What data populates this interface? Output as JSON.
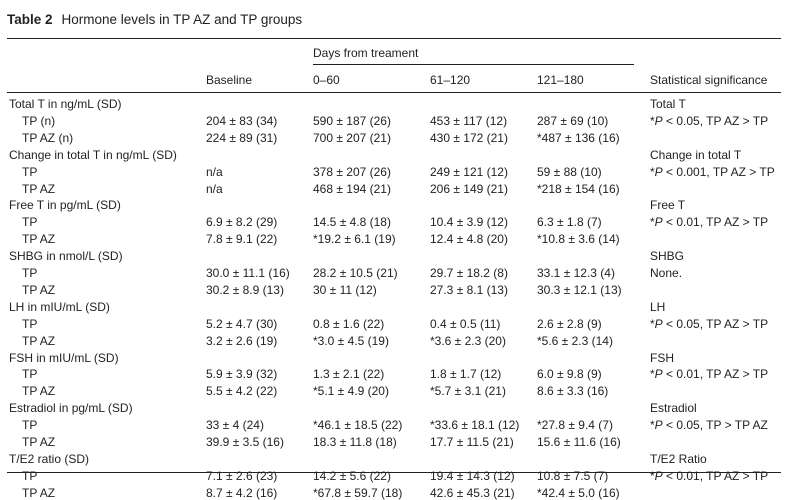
{
  "table": {
    "label": "Table 2",
    "title": "Hormone levels in TP AZ and TP groups",
    "span_header": "Days from treament",
    "col_headers": [
      "Baseline",
      "0–60",
      "61–120",
      "121–180",
      "Statistical significance"
    ],
    "sections": [
      {
        "heading": "Total T in ng/mL (SD)",
        "sig_title": "Total T",
        "sig_p": "P",
        "sig_prefix": "*",
        "sig_text": " < 0.05, TP AZ > TP",
        "rows": [
          {
            "label": "TP (n)",
            "values": [
              "204 ± 83 (34)",
              "590 ± 187 (26)",
              "453 ± 117 (12)",
              "287 ± 69 (10)"
            ]
          },
          {
            "label": "TP AZ (n)",
            "values": [
              "224 ± 89 (31)",
              "700 ± 207 (21)",
              "430 ± 172 (21)",
              "*487 ± 136 (16)"
            ]
          }
        ]
      },
      {
        "heading": "Change in total T in ng/mL (SD)",
        "sig_title": "Change in total T",
        "sig_p": "P",
        "sig_prefix": "*",
        "sig_text": " < 0.001, TP AZ > TP",
        "rows": [
          {
            "label": "TP",
            "values": [
              "n/a",
              "378 ± 207 (26)",
              "249 ± 121 (12)",
              "59 ± 88 (10)"
            ]
          },
          {
            "label": "TP AZ",
            "values": [
              "n/a",
              "468 ± 194 (21)",
              "206 ± 149 (21)",
              "*218 ± 154 (16)"
            ]
          }
        ]
      },
      {
        "heading": "Free T in pg/mL (SD)",
        "sig_title": "Free T",
        "sig_p": "P",
        "sig_prefix": "*",
        "sig_text": " < 0.01, TP AZ > TP",
        "rows": [
          {
            "label": "TP",
            "values": [
              "6.9 ± 8.2 (29)",
              "14.5 ± 4.8 (18)",
              "10.4 ± 3.9 (12)",
              "6.3 ± 1.8 (7)"
            ]
          },
          {
            "label": "TP AZ",
            "values": [
              "7.8 ± 9.1 (22)",
              "*19.2 ± 6.1 (19)",
              "12.4 ± 4.8 (20)",
              "*10.8 ± 3.6 (14)"
            ]
          }
        ]
      },
      {
        "heading": "SHBG in nmol/L (SD)",
        "sig_title": "SHBG",
        "sig_p": "",
        "sig_prefix": "",
        "sig_text": "None.",
        "rows": [
          {
            "label": "TP",
            "values": [
              "30.0 ± 11.1 (16)",
              "28.2 ± 10.5 (21)",
              "29.7 ± 18.2 (8)",
              "33.1 ± 12.3 (4)"
            ]
          },
          {
            "label": "TP AZ",
            "values": [
              "30.2 ± 8.9 (13)",
              "30 ± 11 (12)",
              "27.3 ± 8.1 (13)",
              "30.3 ± 12.1 (13)"
            ]
          }
        ]
      },
      {
        "heading": "LH in mIU/mL (SD)",
        "sig_title": "LH",
        "sig_p": "P",
        "sig_prefix": "*",
        "sig_text": " < 0.05, TP AZ > TP",
        "rows": [
          {
            "label": "TP",
            "values": [
              "5.2 ± 4.7 (30)",
              "0.8 ± 1.6 (22)",
              "0.4 ± 0.5 (11)",
              "2.6 ± 2.8 (9)"
            ]
          },
          {
            "label": "TP AZ",
            "values": [
              "3.2 ± 2.6 (19)",
              "*3.0 ± 4.5 (19)",
              "*3.6 ± 2.3 (20)",
              "*5.6 ± 2.3 (14)"
            ]
          }
        ]
      },
      {
        "heading": "FSH in mIU/mL (SD)",
        "sig_title": "FSH",
        "sig_p": "P",
        "sig_prefix": "*",
        "sig_text": " < 0.01, TP AZ > TP",
        "rows": [
          {
            "label": "TP",
            "values": [
              "5.9 ± 3.9 (32)",
              "1.3 ± 2.1 (22)",
              "1.8 ± 1.7 (12)",
              "6.0 ± 9.8 (9)"
            ]
          },
          {
            "label": "TP AZ",
            "values": [
              "5.5 ± 4.2 (22)",
              "*5.1 ± 4.9 (20)",
              "*5.7 ± 3.1 (21)",
              "8.6 ± 3.3 (16)"
            ]
          }
        ]
      },
      {
        "heading": "Estradiol in pg/mL (SD)",
        "sig_title": "Estradiol",
        "sig_p": "P",
        "sig_prefix": "*",
        "sig_text": " < 0.05, TP > TP AZ",
        "rows": [
          {
            "label": "TP",
            "values": [
              "33 ± 4 (24)",
              "*46.1 ± 18.5 (22)",
              "*33.6 ± 18.1 (12)",
              "*27.8 ± 9.4 (7)"
            ]
          },
          {
            "label": "TP AZ",
            "values": [
              "39.9 ± 3.5 (16)",
              "18.3 ± 11.8 (18)",
              "17.7 ± 11.5 (21)",
              "15.6 ± 11.6 (16)"
            ]
          }
        ]
      },
      {
        "heading": "T/E2 ratio (SD)",
        "sig_title": "T/E2 Ratio",
        "sig_p": "P",
        "sig_prefix": "*",
        "sig_text": " < 0.01, TP AZ > TP",
        "rows": [
          {
            "label": "TP",
            "values": [
              "7.1 ± 2.6 (23)",
              "14.2 ± 5.6 (22)",
              "19.4 ± 14.3 (12)",
              "10.8 ± 7.5 (7)"
            ]
          },
          {
            "label": "TP AZ",
            "values": [
              "8.7 ± 4.2 (16)",
              "*67.8 ± 59.7 (18)",
              "42.6 ± 45.3 (21)",
              "*42.4 ± 5.0 (16)"
            ]
          }
        ]
      }
    ]
  }
}
